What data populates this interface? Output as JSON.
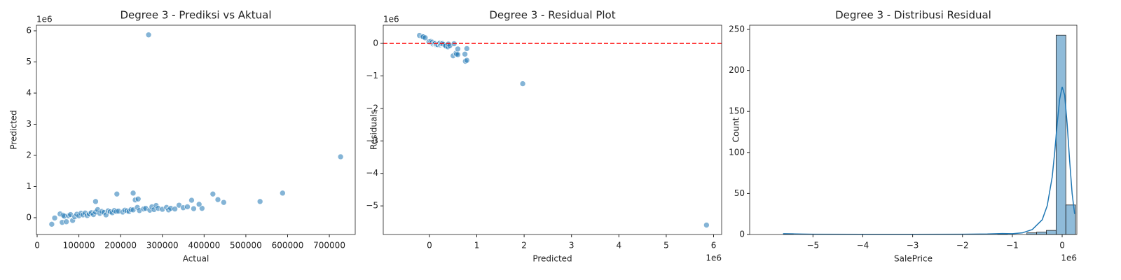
{
  "chart_data": [
    {
      "type": "scatter",
      "title": "Degree 3 - Prediksi vs Aktual",
      "x_label": "Actual",
      "y_label": "Predicted",
      "y_offset_label": "1e6",
      "color": "#1f77b4",
      "x": [
        35000,
        42000,
        55000,
        60000,
        62000,
        65000,
        70000,
        75000,
        80000,
        85000,
        90000,
        95000,
        100000,
        105000,
        110000,
        115000,
        120000,
        125000,
        130000,
        135000,
        140000,
        140000,
        145000,
        150000,
        155000,
        160000,
        165000,
        170000,
        175000,
        180000,
        185000,
        190000,
        195000,
        191000,
        205000,
        210000,
        215000,
        220000,
        225000,
        230000,
        235000,
        230000,
        240000,
        245000,
        242000,
        255000,
        260000,
        267000,
        270000,
        275000,
        280000,
        285000,
        290000,
        300000,
        310000,
        315000,
        320000,
        330000,
        340000,
        350000,
        360000,
        370000,
        375000,
        395000,
        388000,
        421000,
        433000,
        447000,
        534000,
        588000,
        727000
      ],
      "values": [
        -210000,
        -10000,
        120000,
        -150000,
        80000,
        50000,
        -130000,
        60000,
        100000,
        -90000,
        30000,
        110000,
        60000,
        140000,
        90000,
        150000,
        70000,
        120000,
        160000,
        100000,
        180000,
        520000,
        260000,
        140000,
        200000,
        170000,
        90000,
        220000,
        190000,
        160000,
        230000,
        200000,
        210000,
        760000,
        180000,
        240000,
        220000,
        200000,
        260000,
        250000,
        570000,
        790000,
        330000,
        230000,
        600000,
        280000,
        300000,
        5870000,
        240000,
        350000,
        260000,
        390000,
        300000,
        270000,
        330000,
        250000,
        300000,
        280000,
        400000,
        320000,
        350000,
        560000,
        290000,
        300000,
        430000,
        760000,
        580000,
        490000,
        520000,
        790000,
        1955000
      ],
      "xlim": [
        -1700,
        762000
      ],
      "ylim": [
        -540000,
        6180000
      ],
      "xticks": [
        0,
        100000,
        200000,
        300000,
        400000,
        500000,
        600000,
        700000
      ],
      "yticks": [
        0,
        {
          "value": 1000000,
          "label": "1"
        },
        {
          "value": 2000000,
          "label": "2"
        },
        {
          "value": 3000000,
          "label": "3"
        },
        {
          "value": 4000000,
          "label": "4"
        },
        {
          "value": 5000000,
          "label": "5"
        },
        {
          "value": 6000000,
          "label": "6"
        }
      ]
    },
    {
      "type": "residual",
      "title": "Degree 3 - Residual Plot",
      "x_label": "Predicted",
      "y_label": "Residuals",
      "x_offset_label": "1e6",
      "y_offset_label": "1e6",
      "color": "#1f77b4",
      "hline": 0,
      "hline_color": "red",
      "x": [
        -210000,
        -150000,
        -130000,
        -90000,
        -10000,
        30000,
        50000,
        60000,
        80000,
        100000,
        110000,
        120000,
        140000,
        150000,
        160000,
        180000,
        200000,
        220000,
        230000,
        250000,
        260000,
        280000,
        300000,
        330000,
        350000,
        390000,
        400000,
        430000,
        500000,
        520000,
        560000,
        570000,
        600000,
        600000,
        750000,
        760000,
        790000,
        790000,
        1970000,
        5850000
      ],
      "values": [
        245000,
        210000,
        200000,
        175000,
        52000,
        60000,
        15000,
        40000,
        -18000,
        5000,
        -15000,
        -5000,
        -45000,
        -35000,
        -30000,
        -40000,
        -10000,
        5000,
        -45000,
        -20000,
        -10000,
        -5000,
        -30000,
        -60000,
        -80000,
        -105000,
        -20000,
        -70000,
        -380000,
        -10000,
        -300000,
        -330000,
        -345000,
        -170000,
        -330000,
        -550000,
        -520000,
        -160000,
        -1240000,
        -5590000
      ],
      "xlim": [
        -975000,
        6170000
      ],
      "ylim": [
        -5880000,
        560000
      ],
      "xticks": [
        0,
        {
          "value": 1000000,
          "label": "1"
        },
        {
          "value": 2000000,
          "label": "2"
        },
        {
          "value": 3000000,
          "label": "3"
        },
        {
          "value": 4000000,
          "label": "4"
        },
        {
          "value": 5000000,
          "label": "5"
        },
        {
          "value": 6000000,
          "label": "6"
        }
      ],
      "yticks": [
        {
          "value": -5000000,
          "label": "−5"
        },
        {
          "value": -4000000,
          "label": "−4"
        },
        {
          "value": -3000000,
          "label": "−3"
        },
        {
          "value": -2000000,
          "label": "−2"
        },
        {
          "value": -1000000,
          "label": "−1"
        },
        0
      ]
    },
    {
      "type": "histogram",
      "title": "Degree 3 - Distribusi Residual",
      "x_label": "SalePrice",
      "y_label": "Count",
      "x_offset_label": "1e6",
      "color": "#1f77b4",
      "bins": [
        -5590000,
        -5394700,
        -5199400,
        -5004100,
        -4808800,
        -4613500,
        -4418200,
        -4222900,
        -4027600,
        -3832300,
        -3637000,
        -3441700,
        -3246400,
        -3051100,
        -2855800,
        -2660500,
        -2465200,
        -2269900,
        -2074600,
        -1879300,
        -1684000,
        -1488700,
        -1293400,
        -1098100,
        -902800,
        -707500,
        -512200,
        -316900,
        -121600,
        73700,
        269000
      ],
      "values": [
        1,
        0,
        0,
        0,
        0,
        0,
        0,
        0,
        0,
        0,
        0,
        0,
        0,
        0,
        0,
        0,
        0,
        0,
        0,
        0,
        0,
        0,
        1,
        0,
        0,
        2,
        3,
        5,
        243,
        36
      ],
      "kde_x": [
        -5600000,
        -5000000,
        -4000000,
        -3000000,
        -2000000,
        -1500000,
        -1200000,
        -1000000,
        -800000,
        -600000,
        -400000,
        -300000,
        -200000,
        -150000,
        -100000,
        -50000,
        0,
        50000,
        100000,
        150000,
        200000,
        250000
      ],
      "kde_values": [
        1,
        0.3,
        0.2,
        0.2,
        0.3,
        0.6,
        1.2,
        1,
        2,
        6,
        18,
        35,
        70,
        100,
        135,
        165,
        180,
        170,
        135,
        90,
        50,
        25
      ],
      "xlim": [
        -6270000,
        295000
      ],
      "ylim": [
        0,
        255.15
      ],
      "xticks": [
        {
          "value": -5000000,
          "label": "−5"
        },
        {
          "value": -4000000,
          "label": "−4"
        },
        {
          "value": -3000000,
          "label": "−3"
        },
        {
          "value": -2000000,
          "label": "−2"
        },
        {
          "value": -1000000,
          "label": "−1"
        },
        0
      ],
      "yticks": [
        0,
        50,
        100,
        150,
        200,
        250
      ]
    }
  ]
}
